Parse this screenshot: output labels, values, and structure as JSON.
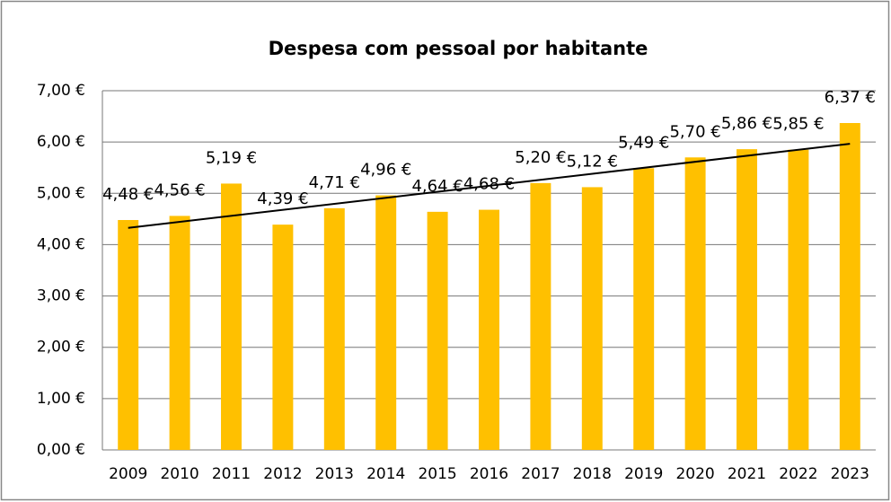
{
  "chart_data": {
    "type": "bar",
    "title": "Despesa com pessoal por habitante",
    "categories": [
      "2009",
      "2010",
      "2011",
      "2012",
      "2013",
      "2014",
      "2015",
      "2016",
      "2017",
      "2018",
      "2019",
      "2020",
      "2021",
      "2022",
      "2023"
    ],
    "values": [
      4.48,
      4.56,
      5.19,
      4.39,
      4.71,
      4.96,
      4.64,
      4.68,
      5.2,
      5.12,
      5.49,
      5.7,
      5.86,
      5.85,
      6.37
    ],
    "value_labels": [
      "4,48 €",
      "4,56 €",
      "5,19 €",
      "4,39 €",
      "4,71 €",
      "4,96 €",
      "4,64 €",
      "4,68 €",
      "5,20 €",
      "5,12 €",
      "5,49 €",
      "5,70 €",
      "5,86 €",
      "5,85 €",
      "6,37 €"
    ],
    "color": "#ffc000",
    "ylim": [
      0,
      7
    ],
    "yticks": [
      {
        "value": 0,
        "label": "0,00 €"
      },
      {
        "value": 1,
        "label": "1,00 €"
      },
      {
        "value": 2,
        "label": "2,00 €"
      },
      {
        "value": 3,
        "label": "3,00 €"
      },
      {
        "value": 4,
        "label": "4,00 €"
      },
      {
        "value": 5,
        "label": "5,00 €"
      },
      {
        "value": 6,
        "label": "6,00 €"
      },
      {
        "value": 7,
        "label": "7,00 €"
      }
    ],
    "grid": true,
    "trendline": "linear"
  }
}
